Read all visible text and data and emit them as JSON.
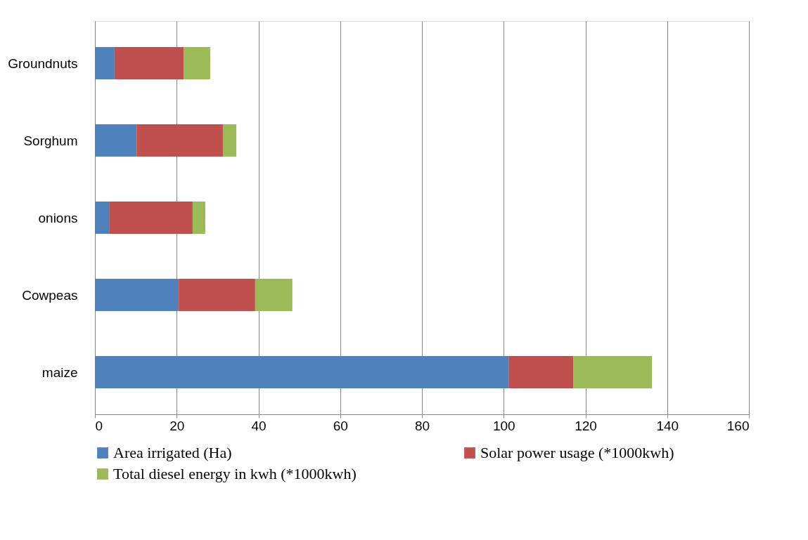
{
  "chart_data": {
    "type": "bar",
    "orientation": "horizontal",
    "stacked": true,
    "categories": [
      "Groundnuts",
      "Sorghum",
      "onions",
      "Cowpeas",
      "maize"
    ],
    "series": [
      {
        "name": "Area irrigated (Ha)",
        "color": "#4f81bd",
        "values": [
          4.8,
          10.2,
          3.6,
          20.5,
          101.2
        ]
      },
      {
        "name": "Solar power usage (*1000kwh)",
        "color": "#c0504d",
        "values": [
          16.9,
          21.1,
          20.3,
          18.7,
          15.8
        ]
      },
      {
        "name": "Total diesel energy in kwh (*1000kwh)",
        "color": "#9bbb59",
        "values": [
          6.5,
          3.3,
          3.1,
          9.1,
          19.3
        ]
      }
    ],
    "xlim": [
      0,
      160
    ],
    "xticks": [
      0,
      20,
      40,
      60,
      80,
      100,
      120,
      140,
      160
    ],
    "grid": "x",
    "legend": "bottom"
  }
}
